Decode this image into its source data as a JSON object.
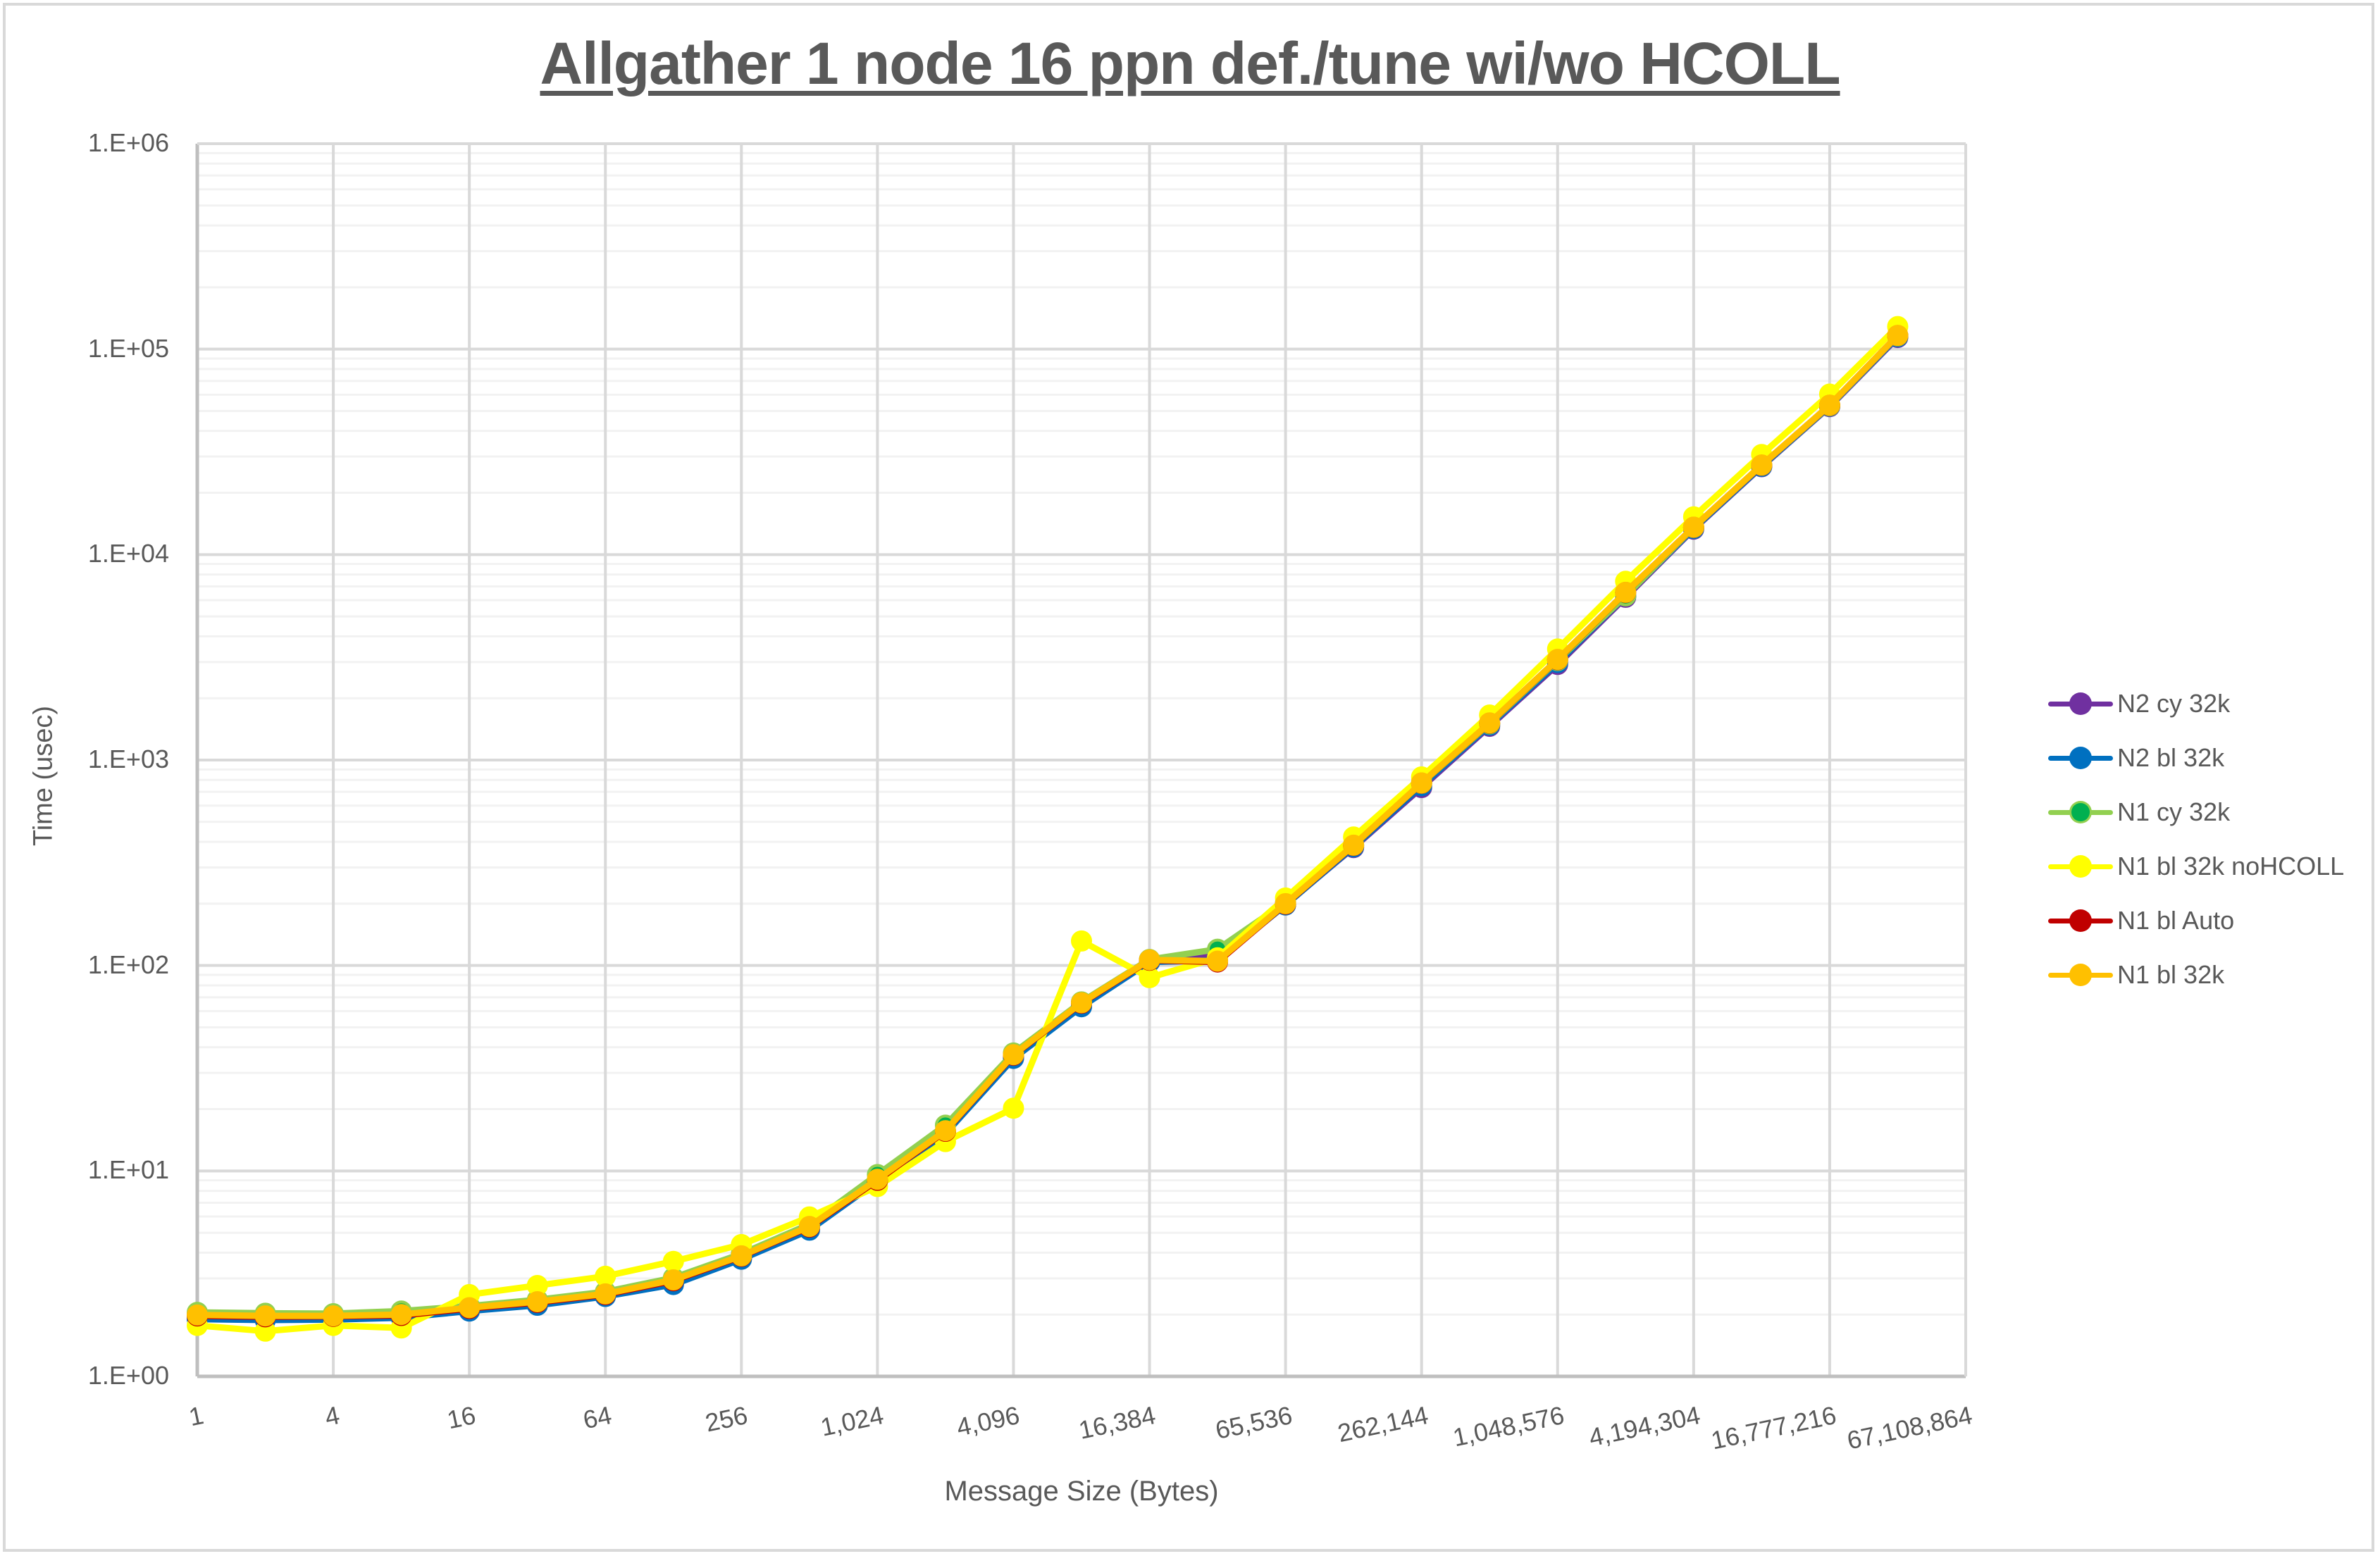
{
  "chart_data": {
    "type": "line",
    "title": "Allgather 1 node 16 ppn def./tune wi/wo HCOLL",
    "xlabel": "Message Size (Bytes)",
    "ylabel": "Time (usec)",
    "yscale": "log",
    "ylim": [
      1,
      1000000
    ],
    "ytick_labels": [
      "1.E+00",
      "1.E+01",
      "1.E+02",
      "1.E+03",
      "1.E+04",
      "1.E+05",
      "1.E+06"
    ],
    "x_axis_categories": [
      "1",
      "2",
      "4",
      "8",
      "16",
      "32",
      "64",
      "128",
      "256",
      "512",
      "1,024",
      "2,048",
      "4,096",
      "8,192",
      "16,384",
      "32,768",
      "65,536",
      "131,072",
      "262,144",
      "524,288",
      "1,048,576",
      "2,097,152",
      "4,194,304",
      "8,388,608",
      "16,777,216",
      "33,554,432",
      "67,108,864"
    ],
    "xtick_labels": [
      "1",
      "4",
      "16",
      "64",
      "256",
      "1,024",
      "4,096",
      "16,384",
      "65,536",
      "262,144",
      "1,048,576",
      "4,194,304",
      "16,777,216",
      "67,108,864"
    ],
    "x": [
      1,
      2,
      4,
      8,
      16,
      32,
      64,
      128,
      256,
      512,
      1024,
      2048,
      4096,
      8192,
      16384,
      32768,
      65536,
      131072,
      262144,
      524288,
      1048576,
      2097152,
      4194304,
      8388608,
      16777216,
      33554432
    ],
    "grid": true,
    "legend_position": "right",
    "series": [
      {
        "name": "N2 cy 32k",
        "color": "#7030a0",
        "marker_color": "#7030a0",
        "values": [
          1.92,
          1.9,
          1.91,
          1.95,
          2.1,
          2.25,
          2.47,
          2.82,
          3.75,
          5.2,
          9.0,
          15.3,
          35.5,
          63.5,
          104,
          112,
          198,
          375,
          735,
          1460,
          2920,
          6200,
          13300,
          26800,
          52500,
          114000
        ]
      },
      {
        "name": "N2 bl 32k",
        "color": "#0070c0",
        "marker_color": "#0070c0",
        "values": [
          1.9,
          1.88,
          1.89,
          1.93,
          2.08,
          2.22,
          2.45,
          2.8,
          3.72,
          5.15,
          8.9,
          15.2,
          35.3,
          63.0,
          104,
          106,
          197,
          378,
          750,
          1480,
          2980,
          6300,
          13400,
          26900,
          52800,
          115000
        ]
      },
      {
        "name": "N1 cy 32k",
        "color": "#92d050",
        "marker_color": "#00b050",
        "values": [
          2.05,
          2.03,
          2.02,
          2.08,
          2.2,
          2.36,
          2.58,
          3.02,
          3.95,
          5.5,
          9.6,
          16.7,
          37.5,
          66.5,
          107,
          120,
          203,
          388,
          770,
          1500,
          3050,
          6300,
          13550,
          27200,
          53000,
          116000
        ]
      },
      {
        "name": "N1 bl 32k noHCOLL",
        "color": "#ffff00",
        "marker_color": "#ffff00",
        "values": [
          1.77,
          1.66,
          1.77,
          1.72,
          2.5,
          2.77,
          3.07,
          3.63,
          4.38,
          5.97,
          8.4,
          13.9,
          20.2,
          131.6,
          87.3,
          109,
          213,
          422,
          827,
          1656,
          3470,
          7410,
          15270,
          30700,
          60400,
          128800
        ]
      },
      {
        "name": "N1 bl Auto",
        "color": "#c00000",
        "marker_color": "#c00000",
        "values": [
          1.97,
          1.95,
          1.96,
          1.98,
          2.14,
          2.29,
          2.5,
          2.92,
          3.84,
          5.33,
          9.0,
          15.6,
          36.6,
          65.5,
          106,
          104,
          199,
          384,
          772,
          1512,
          3080,
          6540,
          13580,
          27250,
          53300,
          116500
        ]
      },
      {
        "name": "N1 bl 32k",
        "color": "#ffc000",
        "marker_color": "#ffc000",
        "values": [
          1.99,
          1.97,
          1.97,
          2.0,
          2.16,
          2.31,
          2.52,
          2.95,
          3.86,
          5.37,
          9.1,
          15.7,
          36.8,
          65.9,
          106.5,
          105,
          200,
          385,
          774,
          1517,
          3090,
          6550,
          13600,
          27300,
          53400,
          116700
        ]
      }
    ]
  },
  "legend": {
    "items": [
      {
        "label": "N2 cy 32k",
        "line_color": "#7030a0",
        "marker_color": "#7030a0"
      },
      {
        "label": "N2 bl 32k",
        "line_color": "#0070c0",
        "marker_color": "#0070c0"
      },
      {
        "label": "N1 cy 32k",
        "line_color": "#92d050",
        "marker_color": "#00b050"
      },
      {
        "label": "N1 bl 32k noHCOLL",
        "line_color": "#ffff00",
        "marker_color": "#ffff00"
      },
      {
        "label": "N1 bl Auto",
        "line_color": "#c00000",
        "marker_color": "#c00000"
      },
      {
        "label": "N1 bl 32k",
        "line_color": "#ffc000",
        "marker_color": "#ffc000"
      }
    ]
  },
  "colors": {
    "text": "#595959",
    "gridline_major": "#d9d9d9",
    "gridline_minor": "#f2f2f2",
    "axis": "#bfbfbf",
    "frame": "#d9d9d9"
  }
}
